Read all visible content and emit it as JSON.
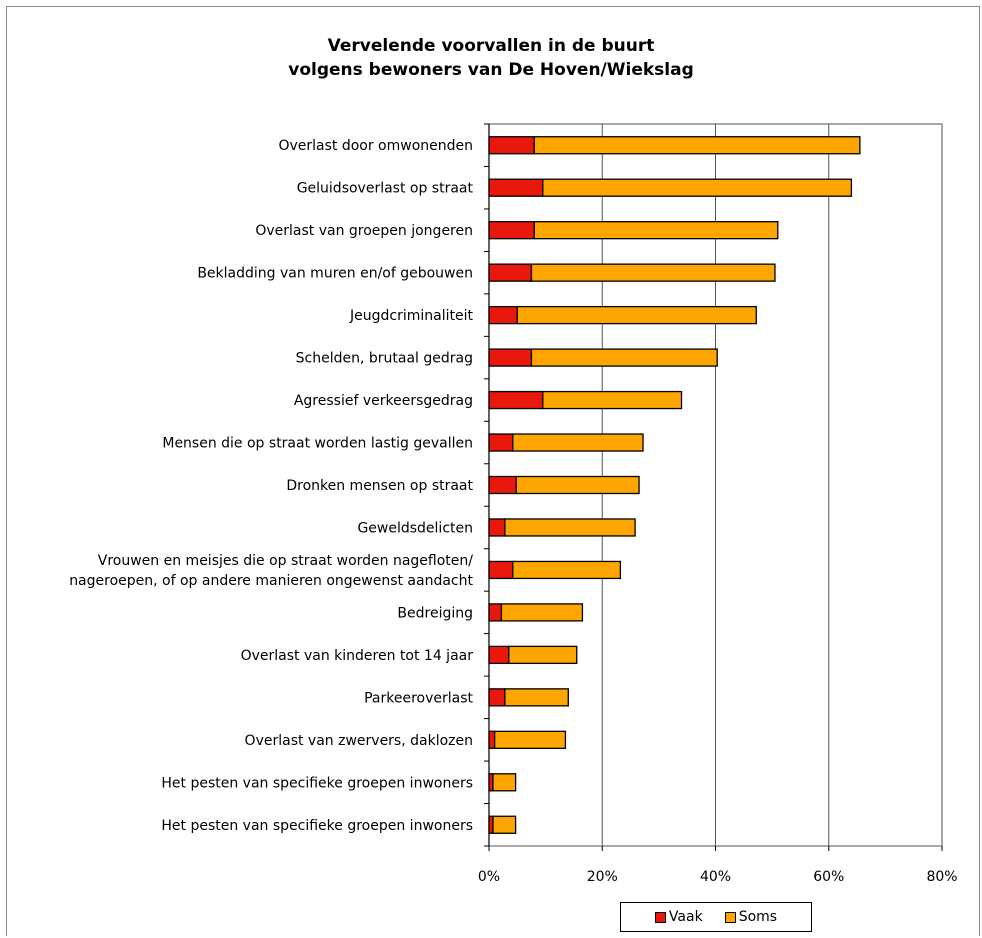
{
  "chart_data": {
    "type": "bar",
    "orientation": "horizontal",
    "stacked": true,
    "title": [
      "Vervelende voorvallen in de buurt",
      "volgens bewoners van De Hoven/Wiekslag"
    ],
    "categories": [
      "Overlast door omwonenden",
      "Geluidsoverlast op straat",
      "Overlast van groepen jongeren",
      "Bekladding van muren en/of gebouwen",
      "Jeugdcriminaliteit",
      "Schelden, brutaal gedrag",
      "Agressief verkeersgedrag",
      "Mensen die op straat worden lastig gevallen",
      "Dronken mensen op straat",
      "Geweldsdelicten",
      "Vrouwen en meisjes die op straat worden nagefloten/\nnageroepen, of op andere manieren ongewenst aandacht",
      "Bedreiging",
      "Overlast van kinderen tot 14 jaar",
      "Parkeeroverlast",
      "Overlast van zwervers, daklozen",
      "Het pesten van specifieke groepen inwoners",
      "Het pesten van specifieke groepen inwoners"
    ],
    "series": [
      {
        "name": "Vaak",
        "color": "#e8180c",
        "values": [
          8,
          9.5,
          8,
          7.5,
          5,
          7.5,
          9.5,
          4.2,
          4.8,
          2.8,
          4.2,
          2.2,
          3.5,
          2.8,
          1,
          0.7,
          0.7
        ]
      },
      {
        "name": "Soms",
        "color": "#ffa500",
        "values": [
          57.5,
          54.5,
          43,
          43,
          42.2,
          32.8,
          24.5,
          23,
          21.7,
          23,
          19,
          14.3,
          12,
          11.2,
          12.5,
          4,
          4
        ]
      }
    ],
    "xlim": [
      0,
      80
    ],
    "xticks": [
      "0%",
      "20%",
      "40%",
      "60%",
      "80%"
    ],
    "grid": "vertical",
    "legend": "bottom"
  }
}
